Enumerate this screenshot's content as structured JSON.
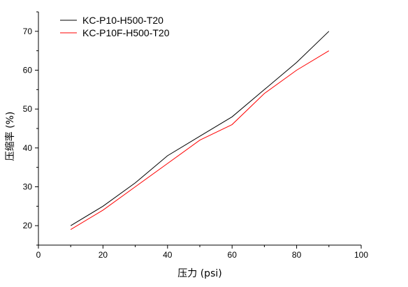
{
  "chart_data": {
    "type": "line",
    "title": "",
    "xlabel": "压力 (psi)",
    "ylabel": "压缩率 (%)",
    "xlim": [
      0,
      100
    ],
    "ylim": [
      15,
      75
    ],
    "xticks": [
      0,
      20,
      40,
      60,
      80,
      100
    ],
    "yticks": [
      20,
      30,
      40,
      50,
      60,
      70
    ],
    "grid": false,
    "legend_position": "top-left",
    "series": [
      {
        "name": "KC-P10-H500-T20",
        "color": "#000000",
        "x": [
          10,
          20,
          30,
          40,
          50,
          60,
          70,
          80,
          90
        ],
        "y": [
          20,
          25,
          31,
          38,
          43,
          48,
          55,
          62,
          70
        ]
      },
      {
        "name": "KC-P10F-H500-T20",
        "color": "#ff0000",
        "x": [
          10,
          20,
          30,
          40,
          50,
          60,
          70,
          80,
          90
        ],
        "y": [
          19,
          24,
          30,
          36,
          42,
          46,
          54,
          60,
          65
        ]
      }
    ]
  }
}
